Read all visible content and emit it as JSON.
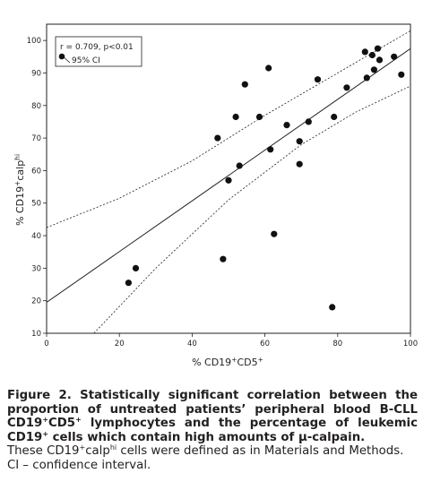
{
  "chart_data": {
    "type": "scatter",
    "xlabel": {
      "prefix": "% CD19",
      "sup1": "+",
      "mid": "CD5",
      "sup2": "+"
    },
    "ylabel": {
      "prefix": "% CD19",
      "sup1": "+",
      "mid": "calp",
      "sup2": "hi"
    },
    "xlim": [
      0,
      100
    ],
    "ylim": [
      10,
      105
    ],
    "x_ticks": [
      "0",
      "20",
      "40",
      "60",
      "80",
      "100"
    ],
    "y_ticks": [
      "10",
      "20",
      "30",
      "40",
      "50",
      "60",
      "70",
      "80",
      "90",
      "100"
    ],
    "legend": {
      "stat": "r = 0.709, p<0.01",
      "ci": "95% CI",
      "placement": "top-left"
    },
    "points": [
      {
        "x": 22.5,
        "y": 25.5
      },
      {
        "x": 24.5,
        "y": 30.0
      },
      {
        "x": 47.0,
        "y": 70.0
      },
      {
        "x": 48.5,
        "y": 32.8
      },
      {
        "x": 50.0,
        "y": 57.0
      },
      {
        "x": 52.0,
        "y": 76.5
      },
      {
        "x": 53.0,
        "y": 61.5
      },
      {
        "x": 54.5,
        "y": 86.5
      },
      {
        "x": 58.5,
        "y": 76.5
      },
      {
        "x": 61.0,
        "y": 91.5
      },
      {
        "x": 61.5,
        "y": 66.5
      },
      {
        "x": 62.5,
        "y": 40.5
      },
      {
        "x": 66.0,
        "y": 74.0
      },
      {
        "x": 69.5,
        "y": 69.0
      },
      {
        "x": 69.5,
        "y": 62.0
      },
      {
        "x": 72.0,
        "y": 75.0
      },
      {
        "x": 74.5,
        "y": 88.0
      },
      {
        "x": 78.5,
        "y": 18.0
      },
      {
        "x": 79.0,
        "y": 76.5
      },
      {
        "x": 82.5,
        "y": 85.5
      },
      {
        "x": 87.5,
        "y": 96.5
      },
      {
        "x": 88.0,
        "y": 88.5
      },
      {
        "x": 89.5,
        "y": 95.5
      },
      {
        "x": 90.0,
        "y": 91.0
      },
      {
        "x": 91.0,
        "y": 97.5
      },
      {
        "x": 91.5,
        "y": 94.0
      },
      {
        "x": 95.5,
        "y": 95.0
      },
      {
        "x": 97.5,
        "y": 89.5
      }
    ],
    "regression_line": [
      [
        0,
        19.5
      ],
      [
        100,
        97.5
      ]
    ],
    "ci_upper": [
      [
        0,
        42.5
      ],
      [
        20,
        51.5
      ],
      [
        40,
        63
      ],
      [
        60,
        77
      ],
      [
        80,
        90
      ],
      [
        100,
        103
      ]
    ],
    "ci_lower": [
      [
        13,
        10
      ],
      [
        30,
        30
      ],
      [
        50,
        51
      ],
      [
        70,
        68
      ],
      [
        85,
        78
      ],
      [
        100,
        86
      ]
    ],
    "colors": {
      "marker": "#111111",
      "line": "#231f20",
      "axis_labels": "#231f20"
    }
  },
  "caption": {
    "line1": "Figure 2. Statistically significant correlation between the proportion of untreated patients’ peripheral blood B-CLL CD19",
    "sup_a": "+",
    "line1b": "CD5",
    "sup_b": "+",
    "line1c": " lymphocytes and the percentage of leukemic CD19",
    "sup_c": "+",
    "line1d": " cells which contain high amounts of μ-calpain.",
    "line2a": "These CD19",
    "sup_d": "+",
    "line2b": "calp",
    "sup_e": "hi",
    "line2c": " cells were defined as in Materials and Methods. CI – confidence interval."
  }
}
